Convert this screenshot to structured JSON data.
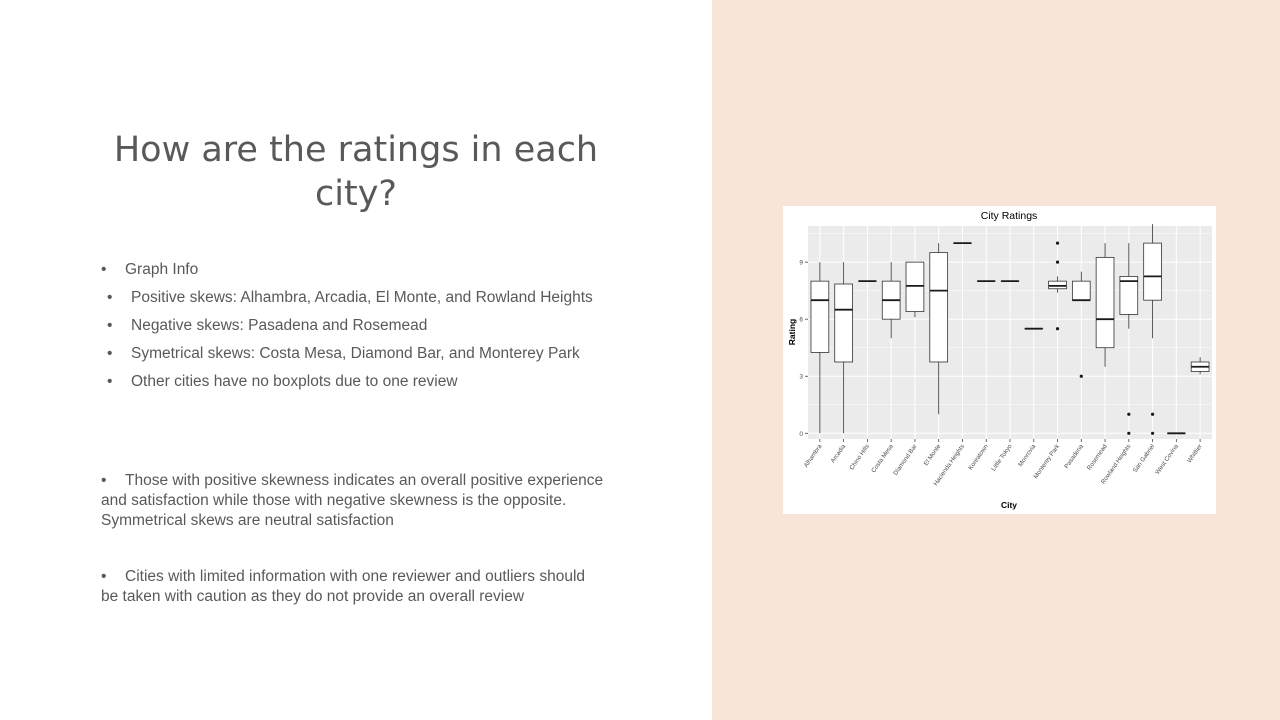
{
  "slide": {
    "title": "How are the ratings in each city?",
    "bullets": [
      {
        "level": 1,
        "text": "Graph Info"
      },
      {
        "level": 2,
        "text": "Positive skews: Alhambra, Arcadia, El Monte, and Rowland Heights"
      },
      {
        "level": 2,
        "text": "Negative skews: Pasadena and Rosemead"
      },
      {
        "level": 2,
        "text": "Symetrical skews: Costa Mesa, Diamond Bar, and Monterey Park"
      },
      {
        "level": 2,
        "text": "Other cities have no boxplots due to one review"
      }
    ],
    "paragraph_1": "Those with positive skewness indicates an overall positive experience and satisfaction while those with negative skewness is the opposite. Symmetrical skews are neutral satisfaction",
    "paragraph_2": "Cities with limited information with one reviewer and outliers should be taken with caution as they do not provide an overall review",
    "bullet_glyph": "•"
  },
  "colors": {
    "text": "#595959",
    "right_panel_bg": "#f9e4d8",
    "plot_bg": "#ebebeb",
    "grid": "#ffffff"
  },
  "chart_data": {
    "type": "boxplot",
    "title": "City Ratings",
    "xlabel": "City",
    "ylabel": "Rating",
    "ylim": [
      -0.3,
      10.9
    ],
    "yticks": [
      0,
      3,
      6,
      9
    ],
    "grid": true,
    "categories": [
      "Alhambra",
      "Arcadia",
      "Chino Hills",
      "Costa Mesa",
      "Diamond Bar",
      "El Monte",
      "Hacienda Heights",
      "Koreatown",
      "Little Tokyo",
      "Monrovia",
      "Monterey Park",
      "Pasadena",
      "Rosemead",
      "Rowland Heights",
      "San Gabriel",
      "West Covina",
      "Whittier"
    ],
    "boxes": [
      {
        "min": 0,
        "q1": 4.25,
        "median": 7.0,
        "q3": 8.0,
        "max": 9.0,
        "outliers": []
      },
      {
        "min": 0,
        "q1": 3.75,
        "median": 6.5,
        "q3": 7.85,
        "max": 9.0,
        "outliers": []
      },
      {
        "min": 8,
        "q1": 8,
        "median": 8,
        "q3": 8,
        "max": 8,
        "outliers": []
      },
      {
        "min": 5.0,
        "q1": 6.0,
        "median": 7.0,
        "q3": 8.0,
        "max": 9.0,
        "outliers": []
      },
      {
        "min": 6.1,
        "q1": 6.4,
        "median": 7.75,
        "q3": 9.0,
        "max": 9.0,
        "outliers": []
      },
      {
        "min": 1.0,
        "q1": 3.75,
        "median": 7.5,
        "q3": 9.5,
        "max": 10.0,
        "outliers": []
      },
      {
        "min": 10,
        "q1": 10,
        "median": 10,
        "q3": 10,
        "max": 10,
        "outliers": []
      },
      {
        "min": 8,
        "q1": 8,
        "median": 8,
        "q3": 8,
        "max": 8,
        "outliers": []
      },
      {
        "min": 8,
        "q1": 8,
        "median": 8,
        "q3": 8,
        "max": 8,
        "outliers": []
      },
      {
        "min": 5.5,
        "q1": 5.5,
        "median": 5.5,
        "q3": 5.5,
        "max": 5.5,
        "outliers": []
      },
      {
        "min": 7.4,
        "q1": 7.6,
        "median": 7.75,
        "q3": 8.0,
        "max": 8.25,
        "outliers": [
          5.5,
          9.0,
          10.0
        ]
      },
      {
        "min": 7.0,
        "q1": 7.0,
        "median": 7.0,
        "q3": 8.0,
        "max": 8.5,
        "outliers": [
          3.0
        ]
      },
      {
        "min": 3.5,
        "q1": 4.5,
        "median": 6.0,
        "q3": 9.25,
        "max": 10.0,
        "outliers": []
      },
      {
        "min": 5.5,
        "q1": 6.25,
        "median": 8.0,
        "q3": 8.25,
        "max": 10.0,
        "outliers": [
          0,
          1.0
        ]
      },
      {
        "min": 5.0,
        "q1": 7.0,
        "median": 8.25,
        "q3": 10.0,
        "max": 11.0,
        "outliers": [
          0,
          1.0
        ]
      },
      {
        "min": 0,
        "q1": 0,
        "median": 0,
        "q3": 0,
        "max": 0,
        "outliers": []
      },
      {
        "min": 3.1,
        "q1": 3.25,
        "median": 3.5,
        "q3": 3.75,
        "max": 4.0,
        "outliers": []
      }
    ]
  }
}
